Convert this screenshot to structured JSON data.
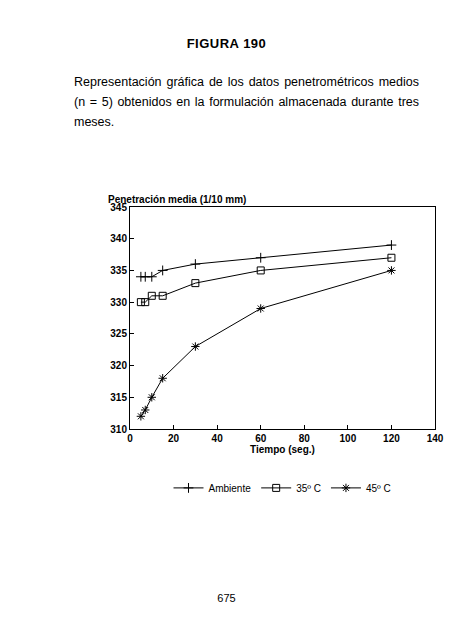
{
  "heading": "FIGURA 190",
  "caption": "Representación gráfica de los datos penetrométricos medios (n = 5) obtenidos en la formulación almacenada durante tres meses.",
  "page_number": "675",
  "chart_data": {
    "type": "line",
    "ylabel": "Penetración media (1/10 mm)",
    "xlabel": "Tiempo (seg.)",
    "x": [
      5,
      7,
      10,
      15,
      30,
      60,
      120
    ],
    "series": [
      {
        "name": "Ambiente",
        "color": "#000000",
        "marker": "plus",
        "line_style": "solid",
        "values": [
          334,
          334,
          334,
          335,
          336,
          337,
          339
        ]
      },
      {
        "name": "35º C",
        "color": "#000000",
        "marker": "square",
        "line_style": "solid",
        "values": [
          330,
          330,
          331,
          331,
          333,
          335,
          337
        ]
      },
      {
        "name": "45º C",
        "color": "#000000",
        "marker": "asterisk",
        "line_style": "solid",
        "values": [
          312,
          313,
          315,
          318,
          323,
          329,
          335
        ]
      }
    ],
    "xlim": [
      0,
      140
    ],
    "xticks": [
      0,
      20,
      40,
      60,
      80,
      100,
      120,
      140
    ],
    "ylim": [
      310,
      345
    ],
    "yticks": [
      310,
      315,
      320,
      325,
      330,
      335,
      340,
      345
    ],
    "grid": false,
    "legend": "bottom"
  }
}
